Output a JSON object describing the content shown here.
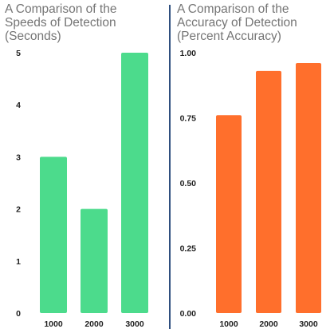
{
  "chart_data": [
    {
      "type": "bar",
      "title": "A Comparison of the\nSpeeds of Detection\n(Seconds)",
      "categories": [
        "1000",
        "2000",
        "3000"
      ],
      "values": [
        3,
        2,
        5
      ],
      "ylim": [
        0,
        5
      ],
      "yticks": [
        "0",
        "1",
        "2",
        "3",
        "4",
        "5"
      ],
      "grid": false,
      "color": "#4cdb8c"
    },
    {
      "type": "bar",
      "title": "A Comparison of the\nAccuracy of Detection\n(Percent Accuracy)",
      "categories": [
        "1000",
        "2000",
        "3000"
      ],
      "values": [
        0.76,
        0.93,
        0.96
      ],
      "ylim": [
        0,
        1
      ],
      "yticks": [
        "0.00",
        "0.25",
        "0.50",
        "0.75",
        "1.00"
      ],
      "grid": false,
      "color": "#ff6f2c"
    }
  ],
  "divider_color": "#2f4f7f"
}
